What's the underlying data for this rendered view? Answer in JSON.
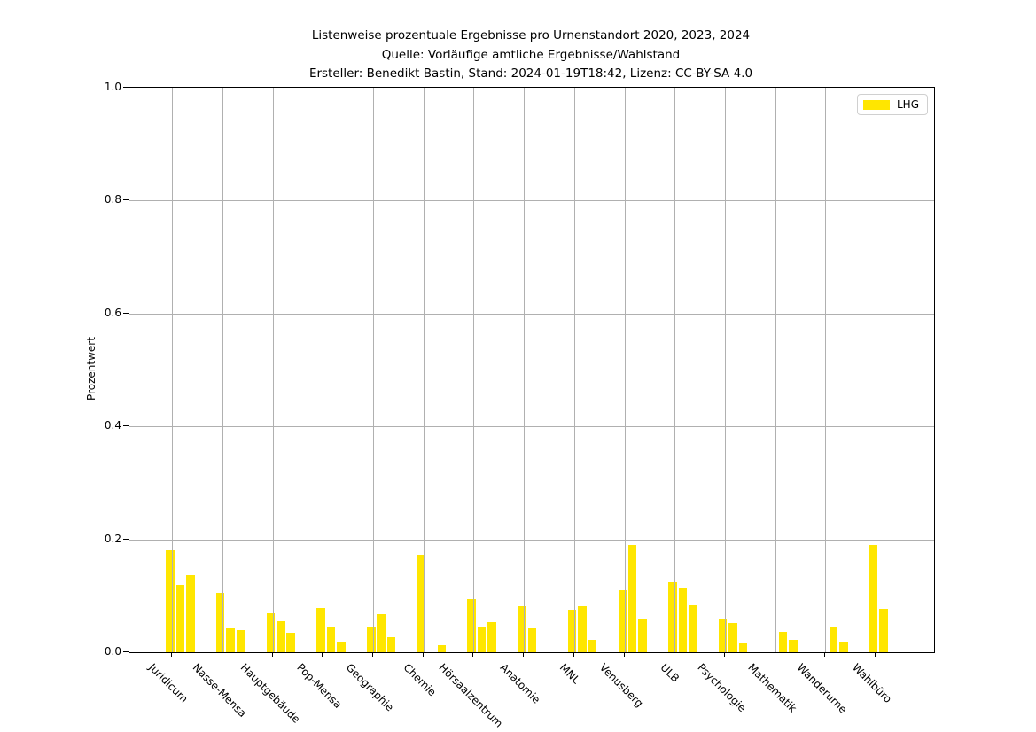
{
  "title": {
    "line1": "Listenweise prozentuale Ergebnisse pro Urnenstandort 2020, 2023, 2024",
    "line2": "Quelle: Vorläufige amtliche Ergebnisse/Wahlstand",
    "line3": "Ersteller: Benedikt Bastin, Stand: 2024-01-19T18:42, Lizenz: CC-BY-SA 4.0"
  },
  "legend": {
    "label": "LHG",
    "color": "#ffe600"
  },
  "chart_data": {
    "type": "bar",
    "title": "Listenweise prozentuale Ergebnisse pro Urnenstandort 2020, 2023, 2024",
    "subtitle": "Quelle: Vorläufige amtliche Ergebnisse/Wahlstand",
    "credit": "Ersteller: Benedikt Bastin, Stand: 2024-01-19T18:42, Lizenz: CC-BY-SA 4.0",
    "xlabel": "",
    "ylabel": "Prozentwert",
    "ylim": [
      0.0,
      1.0
    ],
    "ytick_labels": [
      "0.0",
      "0.2",
      "0.4",
      "0.6",
      "0.8",
      "1.0"
    ],
    "grid": true,
    "legend_position": "upper right",
    "list_name": "LHG",
    "bar_color": "#ffe600",
    "grid_color": "#b0b0b0",
    "categories": [
      "Juridicum",
      "Nasse-Mensa",
      "Hauptgebäude",
      "Pop-Mensa",
      "Geographie",
      "Chemie",
      "Hörsaalzentrum",
      "Anatomie",
      "MNL",
      "Venusberg",
      "ULB",
      "Psychologie",
      "Mathematik",
      "Wanderurne",
      "Wahlbüro"
    ],
    "series": [
      {
        "name": "2020",
        "values": [
          0.18,
          0.105,
          0.069,
          0.079,
          0.045,
          0.173,
          0.094,
          0.082,
          0.076,
          0.11,
          0.124,
          0.058,
          0.0,
          0.0,
          0.19
        ]
      },
      {
        "name": "2023",
        "values": [
          0.119,
          0.042,
          0.055,
          0.046,
          0.068,
          0.0,
          0.046,
          0.043,
          0.081,
          0.19,
          0.113,
          0.052,
          0.036,
          0.046,
          0.077
        ]
      },
      {
        "name": "2024",
        "values": [
          0.136,
          0.04,
          0.035,
          0.018,
          0.027,
          0.012,
          0.053,
          0.0,
          0.022,
          0.06,
          0.083,
          0.015,
          0.022,
          0.017,
          0.0
        ]
      }
    ]
  }
}
